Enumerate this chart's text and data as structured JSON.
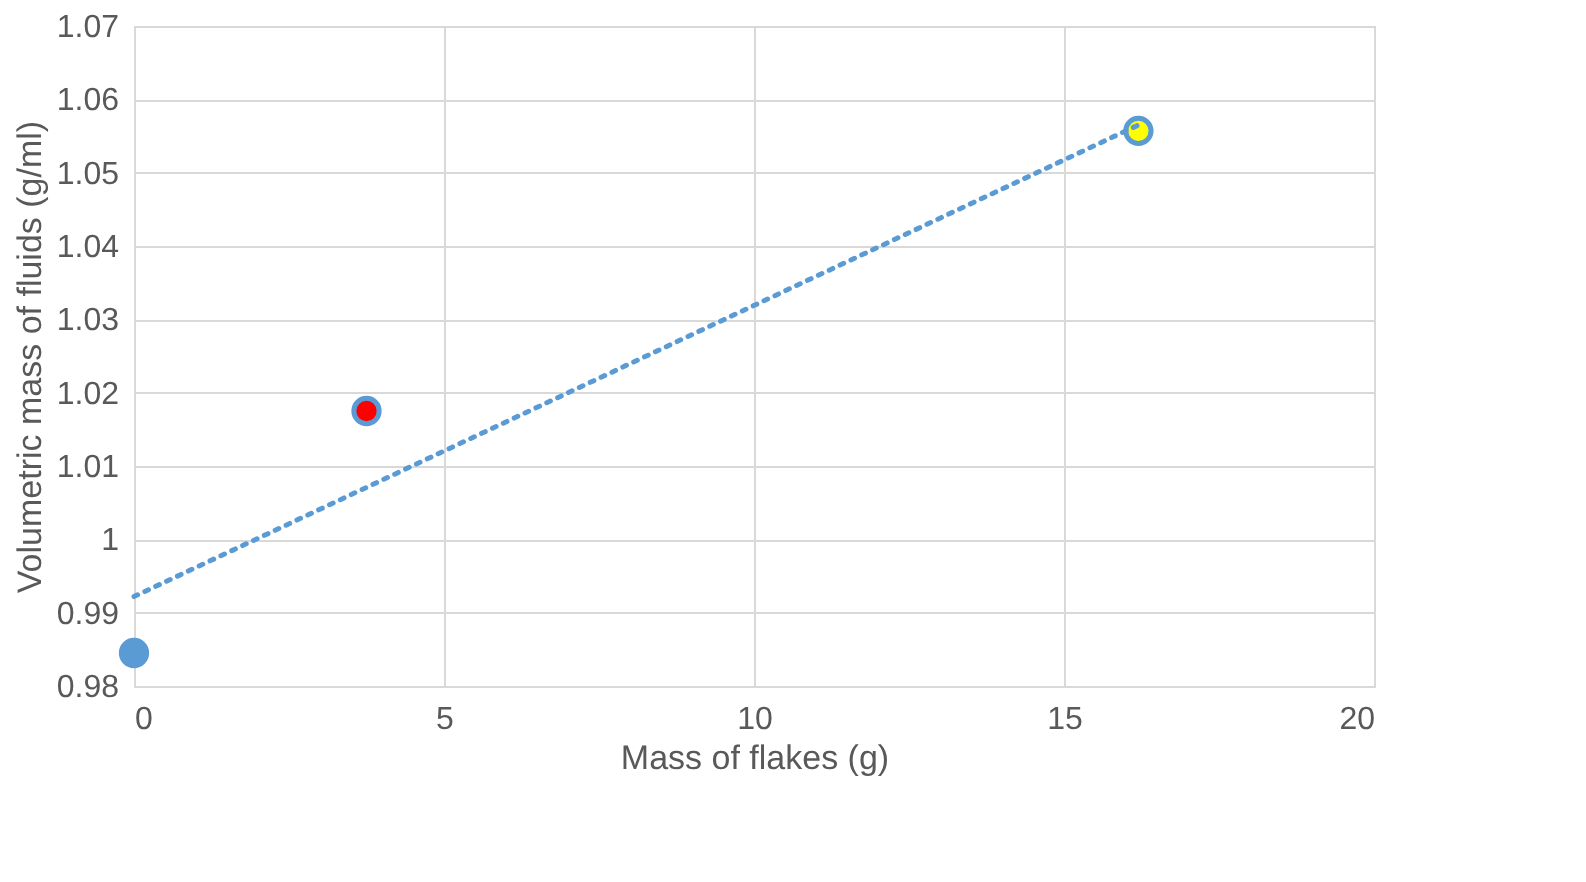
{
  "chart_data": {
    "type": "scatter",
    "xlabel": "Mass of flakes (g)",
    "ylabel": "Volumetric mass of fluids (g/ml)",
    "xlim": [
      0,
      20
    ],
    "xticks": [
      0,
      5,
      10,
      15,
      20
    ],
    "ylim": [
      0.98,
      1.07
    ],
    "yticks": [
      0.98,
      0.99,
      1,
      1.01,
      1.02,
      1.03,
      1.04,
      1.05,
      1.06,
      1.07
    ],
    "grid": true,
    "legend": false,
    "series": [
      {
        "marker": "circle",
        "color": "#5b9bd5",
        "colors": [
          "#5b9bd5",
          "#ff0000",
          "#ffff00"
        ],
        "x": [
          0,
          3.75,
          16.2
        ],
        "values": [
          0.9845,
          1.0175,
          1.0557
        ]
      },
      {
        "type": "line",
        "marker": "none",
        "color": "#5b9bd5",
        "line_style": "dotted",
        "x": [
          0,
          16.2
        ],
        "values": [
          0.9922,
          1.0565
        ]
      }
    ]
  }
}
